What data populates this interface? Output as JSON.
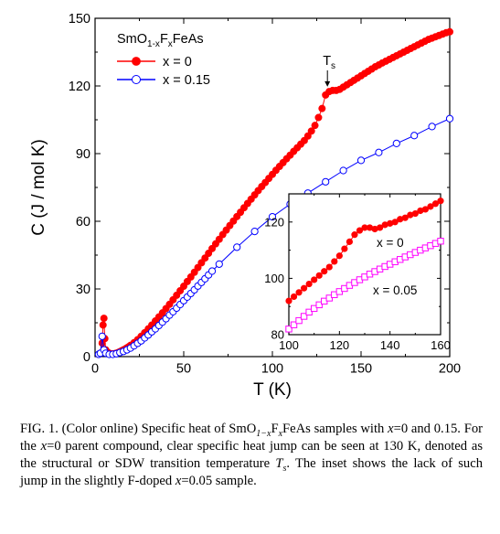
{
  "chart_data": [
    {
      "type": "scatter",
      "xlabel": "T (K)",
      "ylabel": "C (J / mol K)",
      "xlim": [
        0,
        200
      ],
      "ylim": [
        0,
        150
      ],
      "x_ticks": [
        "0",
        "50",
        "100",
        "150",
        "200"
      ],
      "y_ticks": [
        "0",
        "30",
        "60",
        "90",
        "120",
        "150"
      ],
      "legend": {
        "title": "SmO1-xFxFeAs",
        "title_parts": [
          {
            "text": "SmO",
            "sub": false
          },
          {
            "text": "1-x",
            "sub": true
          },
          {
            "text": "F",
            "sub": false
          },
          {
            "text": "x",
            "sub": true
          },
          {
            "text": "FeAs",
            "sub": false
          }
        ],
        "placement": "top-left"
      },
      "annotation": {
        "text": "T",
        "sub": "s",
        "x": 130,
        "y": 118
      },
      "series": [
        {
          "name": "x = 0",
          "color": "#ff0000",
          "marker": "filled-circle",
          "points": [
            [
              2,
              1
            ],
            [
              3,
              1.5
            ],
            [
              4,
              6
            ],
            [
              4.5,
              14
            ],
            [
              5,
              17
            ],
            [
              5.5,
              8
            ],
            [
              6,
              3
            ],
            [
              7,
              2
            ],
            [
              8,
              1.5
            ],
            [
              9,
              1.2
            ],
            [
              10,
              1.2
            ],
            [
              11,
              1.3
            ],
            [
              12,
              1.5
            ],
            [
              13,
              1.8
            ],
            [
              14,
              2.2
            ],
            [
              15,
              2.6
            ],
            [
              16,
              3
            ],
            [
              17,
              3.4
            ],
            [
              18,
              3.9
            ],
            [
              19,
              4.4
            ],
            [
              20,
              5
            ],
            [
              22,
              6.2
            ],
            [
              24,
              7.5
            ],
            [
              26,
              9
            ],
            [
              28,
              10.6
            ],
            [
              30,
              12.3
            ],
            [
              32,
              14
            ],
            [
              34,
              15.8
            ],
            [
              36,
              17.6
            ],
            [
              38,
              19.4
            ],
            [
              40,
              21.3
            ],
            [
              42,
              23.2
            ],
            [
              44,
              25.2
            ],
            [
              46,
              27.2
            ],
            [
              48,
              29.2
            ],
            [
              50,
              31.2
            ],
            [
              52,
              33.3
            ],
            [
              54,
              35.3
            ],
            [
              56,
              37.4
            ],
            [
              58,
              39.5
            ],
            [
              60,
              41.6
            ],
            [
              62,
              43.7
            ],
            [
              64,
              45.8
            ],
            [
              66,
              47.9
            ],
            [
              68,
              50
            ],
            [
              70,
              52
            ],
            [
              72,
              54.1
            ],
            [
              74,
              56.1
            ],
            [
              76,
              58.1
            ],
            [
              78,
              60.1
            ],
            [
              80,
              62.1
            ],
            [
              82,
              64
            ],
            [
              84,
              66
            ],
            [
              86,
              67.9
            ],
            [
              88,
              69.8
            ],
            [
              90,
              71.7
            ],
            [
              92,
              73.6
            ],
            [
              94,
              75.4
            ],
            [
              96,
              77.2
            ],
            [
              98,
              79
            ],
            [
              100,
              80.8
            ],
            [
              102,
              82.6
            ],
            [
              104,
              84.3
            ],
            [
              106,
              86
            ],
            [
              108,
              87.7
            ],
            [
              110,
              89.3
            ],
            [
              112,
              91
            ],
            [
              114,
              92.6
            ],
            [
              116,
              94.2
            ],
            [
              118,
              95.8
            ],
            [
              120,
              97.8
            ],
            [
              122,
              100
            ],
            [
              124,
              102.5
            ],
            [
              126,
              106
            ],
            [
              128,
              110
            ],
            [
              130,
              116
            ],
            [
              132,
              117.5
            ],
            [
              134,
              118
            ],
            [
              136,
              118
            ],
            [
              138,
              118.5
            ],
            [
              140,
              119.5
            ],
            [
              142,
              120.5
            ],
            [
              144,
              121.5
            ],
            [
              146,
              122.5
            ],
            [
              148,
              123.5
            ],
            [
              150,
              124.5
            ],
            [
              152,
              125.5
            ],
            [
              154,
              126.5
            ],
            [
              156,
              127.5
            ],
            [
              158,
              128.5
            ],
            [
              160,
              129.3
            ],
            [
              162,
              130.2
            ],
            [
              164,
              131
            ],
            [
              166,
              131.8
            ],
            [
              168,
              132.6
            ],
            [
              170,
              133.4
            ],
            [
              172,
              134.2
            ],
            [
              174,
              135
            ],
            [
              176,
              135.8
            ],
            [
              178,
              136.6
            ],
            [
              180,
              137.4
            ],
            [
              182,
              138.2
            ],
            [
              184,
              139
            ],
            [
              186,
              139.8
            ],
            [
              188,
              140.6
            ],
            [
              190,
              141.2
            ],
            [
              192,
              141.8
            ],
            [
              194,
              142.4
            ],
            [
              196,
              143
            ],
            [
              198,
              143.6
            ],
            [
              200,
              144
            ]
          ]
        },
        {
          "name": "x = 0.15",
          "color": "#0000ff",
          "marker": "open-circle",
          "points": [
            [
              2,
              1
            ],
            [
              3,
              1.5
            ],
            [
              4,
              9
            ],
            [
              5,
              3
            ],
            [
              6,
              1.5
            ],
            [
              8,
              1
            ],
            [
              10,
              1
            ],
            [
              12,
              1.3
            ],
            [
              14,
              1.8
            ],
            [
              16,
              2.3
            ],
            [
              18,
              3
            ],
            [
              20,
              3.8
            ],
            [
              22,
              4.8
            ],
            [
              24,
              5.9
            ],
            [
              26,
              7
            ],
            [
              28,
              8.3
            ],
            [
              30,
              9.6
            ],
            [
              32,
              11
            ],
            [
              34,
              12.3
            ],
            [
              36,
              13.8
            ],
            [
              38,
              15.3
            ],
            [
              40,
              16.8
            ],
            [
              42,
              18.4
            ],
            [
              44,
              19.9
            ],
            [
              46,
              21.5
            ],
            [
              48,
              23.1
            ],
            [
              50,
              24.8
            ],
            [
              52,
              26.4
            ],
            [
              54,
              28
            ],
            [
              56,
              29.6
            ],
            [
              58,
              31.3
            ],
            [
              60,
              32.9
            ],
            [
              62,
              34.5
            ],
            [
              64,
              36.2
            ],
            [
              66,
              37.9
            ],
            [
              70,
              41
            ],
            [
              80,
              48.5
            ],
            [
              90,
              55.5
            ],
            [
              100,
              62
            ],
            [
              110,
              67.6
            ],
            [
              120,
              72.5
            ],
            [
              130,
              77.5
            ],
            [
              140,
              82.5
            ],
            [
              150,
              87
            ],
            [
              160,
              90.5
            ],
            [
              170,
              94.5
            ],
            [
              180,
              98
            ],
            [
              190,
              102
            ],
            [
              200,
              105.5
            ]
          ]
        }
      ]
    },
    {
      "type": "scatter",
      "inset": true,
      "xlim": [
        100,
        160
      ],
      "ylim": [
        80,
        130
      ],
      "x_ticks": [
        "100",
        "120",
        "140",
        "160"
      ],
      "y_ticks": [
        "80",
        "100",
        "120"
      ],
      "series": [
        {
          "name": "x = 0",
          "color": "#ff0000",
          "marker": "filled-circle",
          "points": [
            [
              100,
              92
            ],
            [
              102,
              93.5
            ],
            [
              104,
              95
            ],
            [
              106,
              96.5
            ],
            [
              108,
              98
            ],
            [
              110,
              99.5
            ],
            [
              112,
              101
            ],
            [
              114,
              102.5
            ],
            [
              116,
              104
            ],
            [
              118,
              106
            ],
            [
              120,
              108
            ],
            [
              122,
              110.5
            ],
            [
              124,
              113
            ],
            [
              126,
              115.5
            ],
            [
              128,
              117
            ],
            [
              130,
              118
            ],
            [
              132,
              118
            ],
            [
              134,
              117.5
            ],
            [
              136,
              118
            ],
            [
              138,
              119
            ],
            [
              140,
              119.5
            ],
            [
              142,
              120
            ],
            [
              144,
              121
            ],
            [
              146,
              121.5
            ],
            [
              148,
              122.5
            ],
            [
              150,
              123
            ],
            [
              152,
              124
            ],
            [
              154,
              124.5
            ],
            [
              156,
              125.5
            ],
            [
              158,
              126.5
            ],
            [
              160,
              127.5
            ]
          ]
        },
        {
          "name": "x = 0.05",
          "color": "#ff00ff",
          "marker": "open-square",
          "points": [
            [
              100,
              82
            ],
            [
              102,
              83.5
            ],
            [
              104,
              85
            ],
            [
              106,
              86.5
            ],
            [
              108,
              88
            ],
            [
              110,
              89.3
            ],
            [
              112,
              90.6
            ],
            [
              114,
              91.9
            ],
            [
              116,
              93
            ],
            [
              118,
              94.2
            ],
            [
              120,
              95.3
            ],
            [
              122,
              96.4
            ],
            [
              124,
              97.5
            ],
            [
              126,
              98.5
            ],
            [
              128,
              99.5
            ],
            [
              130,
              100.5
            ],
            [
              132,
              101.5
            ],
            [
              134,
              102.4
            ],
            [
              136,
              103.3
            ],
            [
              138,
              104.2
            ],
            [
              140,
              105
            ],
            [
              142,
              105.9
            ],
            [
              144,
              106.7
            ],
            [
              146,
              107.6
            ],
            [
              148,
              108.4
            ],
            [
              150,
              109.2
            ],
            [
              152,
              110
            ],
            [
              154,
              110.8
            ],
            [
              156,
              111.6
            ],
            [
              158,
              112.4
            ],
            [
              160,
              113.2
            ]
          ]
        }
      ]
    }
  ],
  "caption": {
    "runs": [
      {
        "t": "FIG. 1. (Color online) Specific heat of SmO"
      },
      {
        "t": "1−x",
        "sub": true,
        "i": true
      },
      {
        "t": "F"
      },
      {
        "t": "x",
        "sub": true,
        "i": true
      },
      {
        "t": "FeAs samples with "
      },
      {
        "t": "x",
        "i": true
      },
      {
        "t": "=0 and 0.15. For the "
      },
      {
        "t": "x",
        "i": true
      },
      {
        "t": "=0 parent compound, clear specific heat jump can be seen at 130 K, denoted as the structural or SDW transition temperature "
      },
      {
        "t": "T",
        "i": true
      },
      {
        "t": "s",
        "sub": true,
        "i": true
      },
      {
        "t": ". The inset shows the lack of such jump in the slightly F-doped "
      },
      {
        "t": "x",
        "i": true
      },
      {
        "t": "=0.05 sample."
      }
    ]
  }
}
